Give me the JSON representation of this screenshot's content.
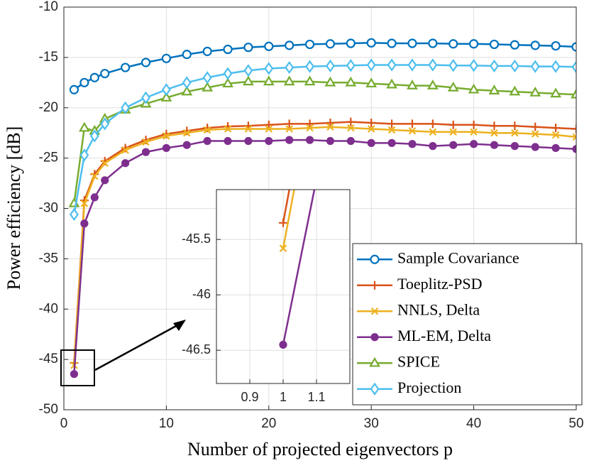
{
  "chart_data": {
    "type": "line",
    "xlabel": "Number of projected eigenvectors p",
    "ylabel": "Power efficiency [dB]",
    "x": [
      1,
      2,
      3,
      4,
      6,
      8,
      10,
      12,
      14,
      16,
      18,
      20,
      22,
      24,
      26,
      28,
      30,
      32,
      34,
      36,
      38,
      40,
      42,
      44,
      46,
      48,
      50
    ],
    "xlim": [
      0,
      50
    ],
    "xticks": [
      0,
      10,
      20,
      30,
      40,
      50
    ],
    "ylim": [
      -50,
      -10
    ],
    "yticks": [
      -10,
      -15,
      -20,
      -25,
      -30,
      -35,
      -40,
      -45,
      -50
    ],
    "grid": true,
    "legend": "lower right",
    "series": [
      {
        "name": "Sample Covariance",
        "color": "#0072bd",
        "marker": "circle",
        "values": [
          -18.2,
          -17.5,
          -17,
          -16.6,
          -16,
          -15.5,
          -15.1,
          -14.7,
          -14.4,
          -14.2,
          -14,
          -13.9,
          -13.8,
          -13.7,
          -13.65,
          -13.6,
          -13.55,
          -13.6,
          -13.6,
          -13.6,
          -13.65,
          -13.65,
          -13.7,
          -13.75,
          -13.8,
          -13.85,
          -13.95
        ]
      },
      {
        "name": "Toeplitz-PSD",
        "color": "#d95319",
        "marker": "plus",
        "values": [
          -45.35,
          -29.2,
          -26.6,
          -25.3,
          -24,
          -23.2,
          -22.6,
          -22.3,
          -22,
          -21.85,
          -21.8,
          -21.7,
          -21.6,
          -21.6,
          -21.5,
          -21.4,
          -21.5,
          -21.6,
          -21.6,
          -21.6,
          -21.7,
          -21.7,
          -21.8,
          -21.8,
          -21.9,
          -22,
          -22.1
        ]
      },
      {
        "name": "NNLS, Delta",
        "color": "#edb120",
        "marker": "cross",
        "values": [
          -45.58,
          -29.5,
          -26.8,
          -25.5,
          -24.2,
          -23.4,
          -22.8,
          -22.5,
          -22.2,
          -22.1,
          -22.1,
          -22.1,
          -22.1,
          -22,
          -21.9,
          -22,
          -22.1,
          -22.2,
          -22.3,
          -22.4,
          -22.4,
          -22.4,
          -22.5,
          -22.5,
          -22.6,
          -22.7,
          -22.9
        ]
      },
      {
        "name": "ML-EM, Delta",
        "color": "#7e2f8e",
        "marker": "dot",
        "values": [
          -46.45,
          -31.5,
          -28.9,
          -27.2,
          -25.5,
          -24.4,
          -24,
          -23.7,
          -23.3,
          -23.3,
          -23.3,
          -23.3,
          -23.2,
          -23.2,
          -23.3,
          -23.3,
          -23.5,
          -23.5,
          -23.6,
          -23.8,
          -23.7,
          -23.6,
          -23.7,
          -23.8,
          -23.9,
          -24,
          -24.1
        ]
      },
      {
        "name": "SPICE",
        "color": "#77ac30",
        "marker": "triangle",
        "values": [
          -29.5,
          -22,
          -22.3,
          -21.1,
          -20.2,
          -19.6,
          -19,
          -18.4,
          -18,
          -17.6,
          -17.4,
          -17.4,
          -17.4,
          -17.4,
          -17.5,
          -17.5,
          -17.6,
          -17.7,
          -17.8,
          -17.8,
          -18,
          -18.2,
          -18.3,
          -18.4,
          -18.5,
          -18.6,
          -18.7
        ]
      },
      {
        "name": "Projection",
        "color": "#4dbeee",
        "marker": "diamond",
        "values": [
          -30.6,
          -24.7,
          -22.8,
          -21.6,
          -20,
          -19,
          -18.2,
          -17.5,
          -17,
          -16.6,
          -16.3,
          -16.1,
          -16,
          -15.9,
          -15.85,
          -15.8,
          -15.75,
          -15.75,
          -15.75,
          -15.75,
          -15.8,
          -15.8,
          -15.85,
          -15.85,
          -15.9,
          -15.9,
          -15.95
        ]
      }
    ],
    "inset": {
      "xlim": [
        0.8,
        1.2
      ],
      "xticks": [
        0.9,
        1,
        1.1
      ],
      "ylim": [
        -46.8,
        -45.05
      ],
      "yticks": [
        -45.5,
        -46,
        -46.5
      ]
    }
  }
}
